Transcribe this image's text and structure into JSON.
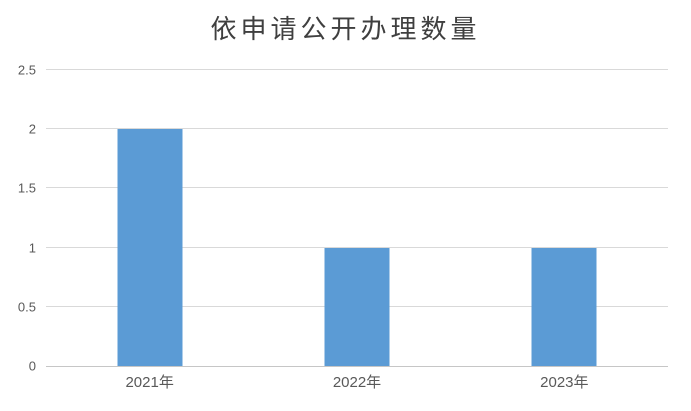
{
  "title": "依申请公开办理数量",
  "chart_data": {
    "type": "bar",
    "title": "依申请公开办理数量",
    "categories": [
      "2021年",
      "2022年",
      "2023年"
    ],
    "values": [
      2,
      1,
      1
    ],
    "xlabel": "",
    "ylabel": "",
    "ylim": [
      0,
      2.5
    ],
    "yticks": [
      0,
      0.5,
      1,
      1.5,
      2,
      2.5
    ],
    "grid": true,
    "legend": false,
    "colors": {
      "bar": "#5B9BD5",
      "gridline": "#D9D9D9",
      "axis_line": "#C6C6C6",
      "tick_label": "#595959",
      "title": "#3F3F3F"
    }
  }
}
